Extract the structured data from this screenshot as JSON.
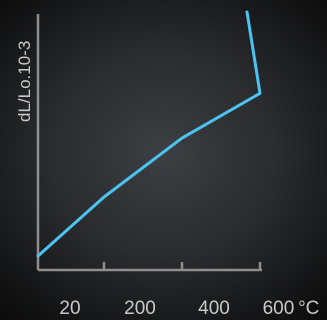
{
  "chart_data": {
    "type": "line",
    "title": "",
    "xlabel": "",
    "ylabel": "dL/Lo.10-3",
    "x_unit": "°C",
    "x_tick_labels": [
      "20",
      "200",
      "400",
      "600"
    ],
    "x": [
      20,
      200,
      400,
      600
    ],
    "series": [
      {
        "values": [
          0.0,
          2.9,
          5.8,
          8.0
        ]
      }
    ],
    "x_endpoint": 650,
    "y_endpoint": 12.0,
    "ylim": [
      0,
      12
    ],
    "grid": false,
    "legend": "none",
    "colors": {
      "line": "#4cc3f0",
      "axis": "#8e8e8e",
      "text": "#c9c9c9",
      "background": "#2e3033"
    }
  }
}
